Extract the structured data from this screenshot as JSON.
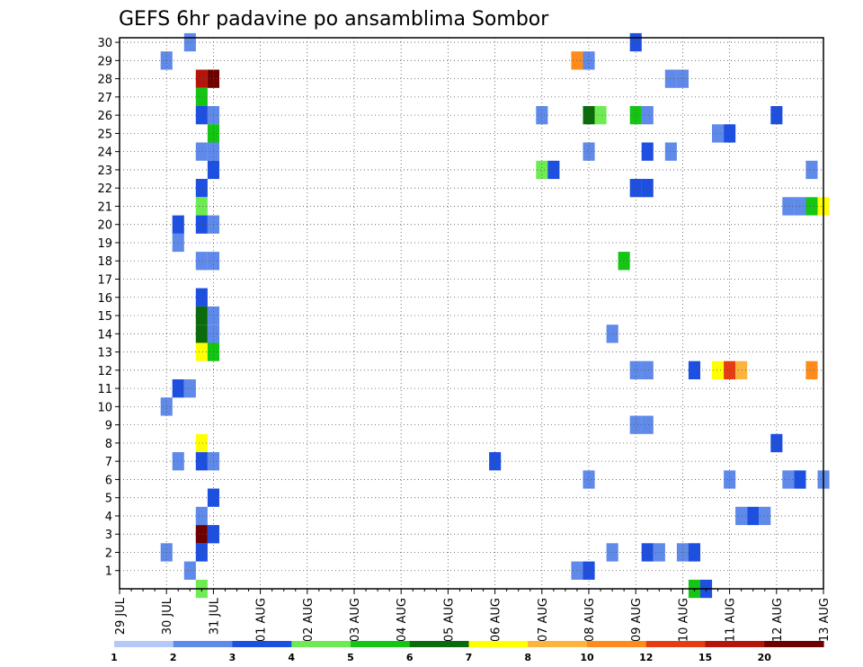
{
  "chart_data": {
    "type": "heatmap",
    "title": "GEFS 6hr padavine po ansamblima Sombor",
    "members": [
      1,
      2,
      3,
      4,
      5,
      6,
      7,
      8,
      9,
      10,
      11,
      12,
      13,
      14,
      15,
      16,
      17,
      18,
      19,
      20,
      21,
      22,
      23,
      24,
      25,
      26,
      27,
      28,
      29,
      30
    ],
    "x_ticks": [
      "29 JUL",
      "30 JUL",
      "31 JUL",
      "01 AUG",
      "02 AUG",
      "03 AUG",
      "04 AUG",
      "05 AUG",
      "06 AUG",
      "07 AUG",
      "08 AUG",
      "09 AUG",
      "10 AUG",
      "11 AUG",
      "12 AUG",
      "13 AUG"
    ],
    "x_range_steps": [
      0,
      60
    ],
    "steps_per_day": 4,
    "y_range": [
      0,
      30
    ],
    "grid": true,
    "legend": {
      "position": "bottom",
      "labels": [
        "1",
        "2",
        "3",
        "4",
        "5",
        "6",
        "7",
        "8",
        "10",
        "12",
        "15",
        "20"
      ],
      "colors": [
        "#b5c9f7",
        "#5f8ae9",
        "#1d4fe0",
        "#6eeb53",
        "#14c514",
        "#0a6b0a",
        "#ffff00",
        "#fcb43c",
        "#ff8c1a",
        "#e63c14",
        "#b4140a",
        "#6e0000"
      ]
    },
    "cells": [
      {
        "member": 30,
        "step": 6,
        "level": 1
      },
      {
        "member": 30,
        "step": 44,
        "level": 2
      },
      {
        "member": 29,
        "step": 4,
        "level": 1
      },
      {
        "member": 29,
        "step": 39,
        "level": 8
      },
      {
        "member": 29,
        "step": 40,
        "level": 1
      },
      {
        "member": 28,
        "step": 7,
        "level": 10
      },
      {
        "member": 28,
        "step": 8,
        "level": 11
      },
      {
        "member": 28,
        "step": 47,
        "level": 1
      },
      {
        "member": 28,
        "step": 48,
        "level": 1
      },
      {
        "member": 27,
        "step": 7,
        "level": 4
      },
      {
        "member": 26,
        "step": 7,
        "level": 2
      },
      {
        "member": 26,
        "step": 8,
        "level": 1
      },
      {
        "member": 26,
        "step": 36,
        "level": 1
      },
      {
        "member": 26,
        "step": 40,
        "level": 5
      },
      {
        "member": 26,
        "step": 41,
        "level": 3
      },
      {
        "member": 26,
        "step": 44,
        "level": 4
      },
      {
        "member": 26,
        "step": 45,
        "level": 1
      },
      {
        "member": 26,
        "step": 56,
        "level": 2
      },
      {
        "member": 25,
        "step": 8,
        "level": 4
      },
      {
        "member": 25,
        "step": 51,
        "level": 1
      },
      {
        "member": 25,
        "step": 52,
        "level": 2
      },
      {
        "member": 24,
        "step": 7,
        "level": 1
      },
      {
        "member": 24,
        "step": 8,
        "level": 1
      },
      {
        "member": 24,
        "step": 40,
        "level": 1
      },
      {
        "member": 24,
        "step": 45,
        "level": 2
      },
      {
        "member": 24,
        "step": 47,
        "level": 1
      },
      {
        "member": 23,
        "step": 8,
        "level": 2
      },
      {
        "member": 23,
        "step": 36,
        "level": 3
      },
      {
        "member": 23,
        "step": 37,
        "level": 2
      },
      {
        "member": 23,
        "step": 59,
        "level": 1
      },
      {
        "member": 22,
        "step": 7,
        "level": 2
      },
      {
        "member": 22,
        "step": 44,
        "level": 2
      },
      {
        "member": 22,
        "step": 45,
        "level": 2
      },
      {
        "member": 21,
        "step": 7,
        "level": 3
      },
      {
        "member": 21,
        "step": 57,
        "level": 1
      },
      {
        "member": 21,
        "step": 58,
        "level": 1
      },
      {
        "member": 21,
        "step": 59,
        "level": 4
      },
      {
        "member": 21,
        "step": 60,
        "level": 6
      },
      {
        "member": 20,
        "step": 5,
        "level": 2
      },
      {
        "member": 20,
        "step": 7,
        "level": 2
      },
      {
        "member": 20,
        "step": 8,
        "level": 1
      },
      {
        "member": 19,
        "step": 5,
        "level": 1
      },
      {
        "member": 18,
        "step": 7,
        "level": 1
      },
      {
        "member": 18,
        "step": 8,
        "level": 1
      },
      {
        "member": 18,
        "step": 43,
        "level": 4
      },
      {
        "member": 16,
        "step": 7,
        "level": 2
      },
      {
        "member": 15,
        "step": 7,
        "level": 5
      },
      {
        "member": 15,
        "step": 8,
        "level": 1
      },
      {
        "member": 14,
        "step": 7,
        "level": 5
      },
      {
        "member": 14,
        "step": 8,
        "level": 1
      },
      {
        "member": 14,
        "step": 42,
        "level": 1
      },
      {
        "member": 13,
        "step": 7,
        "level": 6
      },
      {
        "member": 13,
        "step": 8,
        "level": 4
      },
      {
        "member": 12,
        "step": 44,
        "level": 1
      },
      {
        "member": 12,
        "step": 45,
        "level": 1
      },
      {
        "member": 12,
        "step": 49,
        "level": 2
      },
      {
        "member": 12,
        "step": 51,
        "level": 6
      },
      {
        "member": 12,
        "step": 52,
        "level": 9
      },
      {
        "member": 12,
        "step": 53,
        "level": 7
      },
      {
        "member": 12,
        "step": 59,
        "level": 8
      },
      {
        "member": 11,
        "step": 5,
        "level": 2
      },
      {
        "member": 11,
        "step": 6,
        "level": 1
      },
      {
        "member": 10,
        "step": 4,
        "level": 1
      },
      {
        "member": 9,
        "step": 44,
        "level": 1
      },
      {
        "member": 9,
        "step": 45,
        "level": 1
      },
      {
        "member": 8,
        "step": 7,
        "level": 6
      },
      {
        "member": 8,
        "step": 56,
        "level": 2
      },
      {
        "member": 7,
        "step": 5,
        "level": 1
      },
      {
        "member": 7,
        "step": 7,
        "level": 2
      },
      {
        "member": 7,
        "step": 8,
        "level": 1
      },
      {
        "member": 7,
        "step": 32,
        "level": 2
      },
      {
        "member": 6,
        "step": 40,
        "level": 1
      },
      {
        "member": 6,
        "step": 52,
        "level": 1
      },
      {
        "member": 6,
        "step": 57,
        "level": 1
      },
      {
        "member": 6,
        "step": 58,
        "level": 2
      },
      {
        "member": 6,
        "step": 60,
        "level": 1
      },
      {
        "member": 5,
        "step": 8,
        "level": 2
      },
      {
        "member": 4,
        "step": 7,
        "level": 1
      },
      {
        "member": 4,
        "step": 53,
        "level": 1
      },
      {
        "member": 4,
        "step": 54,
        "level": 2
      },
      {
        "member": 4,
        "step": 55,
        "level": 1
      },
      {
        "member": 3,
        "step": 7,
        "level": 11
      },
      {
        "member": 3,
        "step": 8,
        "level": 2
      },
      {
        "member": 2,
        "step": 4,
        "level": 1
      },
      {
        "member": 2,
        "step": 7,
        "level": 2
      },
      {
        "member": 2,
        "step": 42,
        "level": 1
      },
      {
        "member": 2,
        "step": 45,
        "level": 2
      },
      {
        "member": 2,
        "step": 46,
        "level": 1
      },
      {
        "member": 2,
        "step": 48,
        "level": 1
      },
      {
        "member": 2,
        "step": 49,
        "level": 2
      },
      {
        "member": 1,
        "step": 6,
        "level": 1
      },
      {
        "member": 1,
        "step": 39,
        "level": 1
      },
      {
        "member": 1,
        "step": 40,
        "level": 2
      },
      {
        "member": 0,
        "step": 7,
        "level": 3
      },
      {
        "member": 0,
        "step": 49,
        "level": 4
      },
      {
        "member": 0,
        "step": 50,
        "level": 2
      }
    ]
  }
}
